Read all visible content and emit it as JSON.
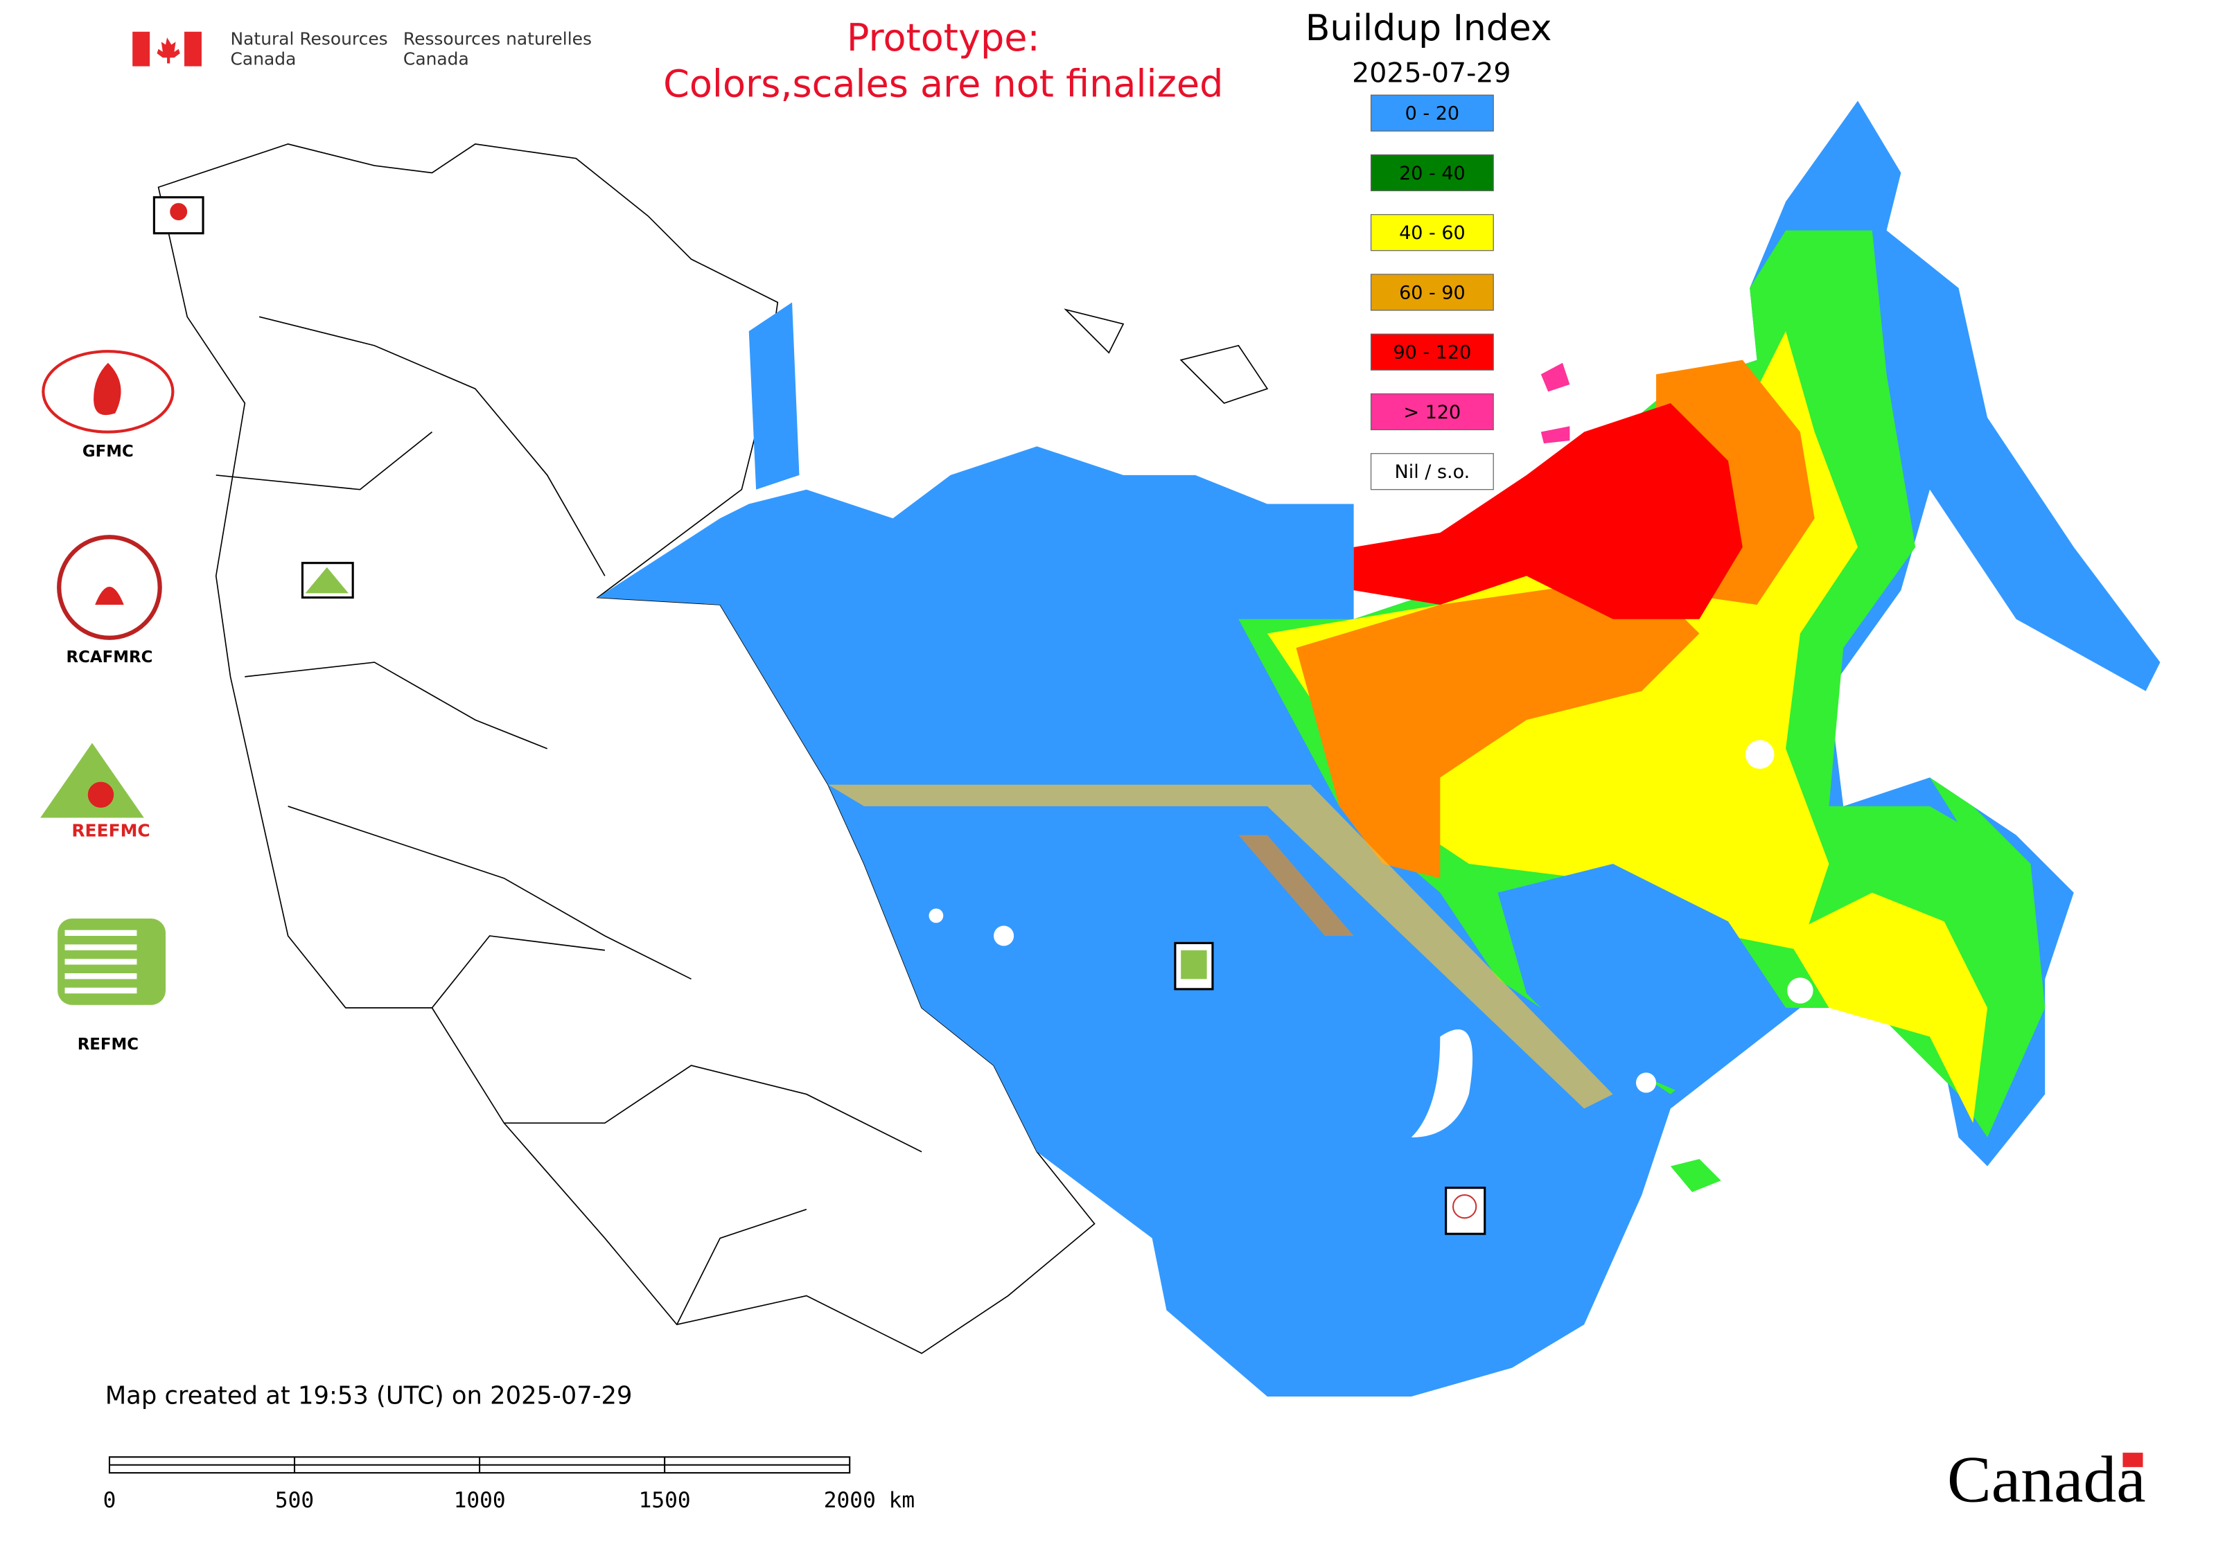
{
  "header": {
    "agency_en": [
      "Natural Resources",
      "Canada"
    ],
    "agency_fr": [
      "Ressources naturelles",
      "Canada"
    ],
    "notice": [
      "Prototype:",
      "Colors,scales are not finalized"
    ]
  },
  "legend": {
    "title": "Buildup Index",
    "date": "2025-07-29",
    "items": [
      {
        "label": "0 - 20",
        "color": "#3399ff"
      },
      {
        "label": "20 - 40",
        "color": "#008000"
      },
      {
        "label": "40 - 60",
        "color": "#ffff00"
      },
      {
        "label": "60 - 90",
        "color": "#e6a000"
      },
      {
        "label": "90 - 120",
        "color": "#ff0000"
      },
      {
        "label": "> 120",
        "color": "#ff3399"
      },
      {
        "label": "Nil / s.o.",
        "color": "#ffffff"
      }
    ]
  },
  "logos": [
    "GFMC",
    "RCAFMRC",
    "REEFMC",
    "REFMC"
  ],
  "footer": {
    "created": "Map created at 19:53 (UTC) on 2025-07-29",
    "scale_labels": [
      "0",
      "500",
      "1000",
      "1500",
      "2000 km"
    ],
    "wordmark": "Canada"
  }
}
